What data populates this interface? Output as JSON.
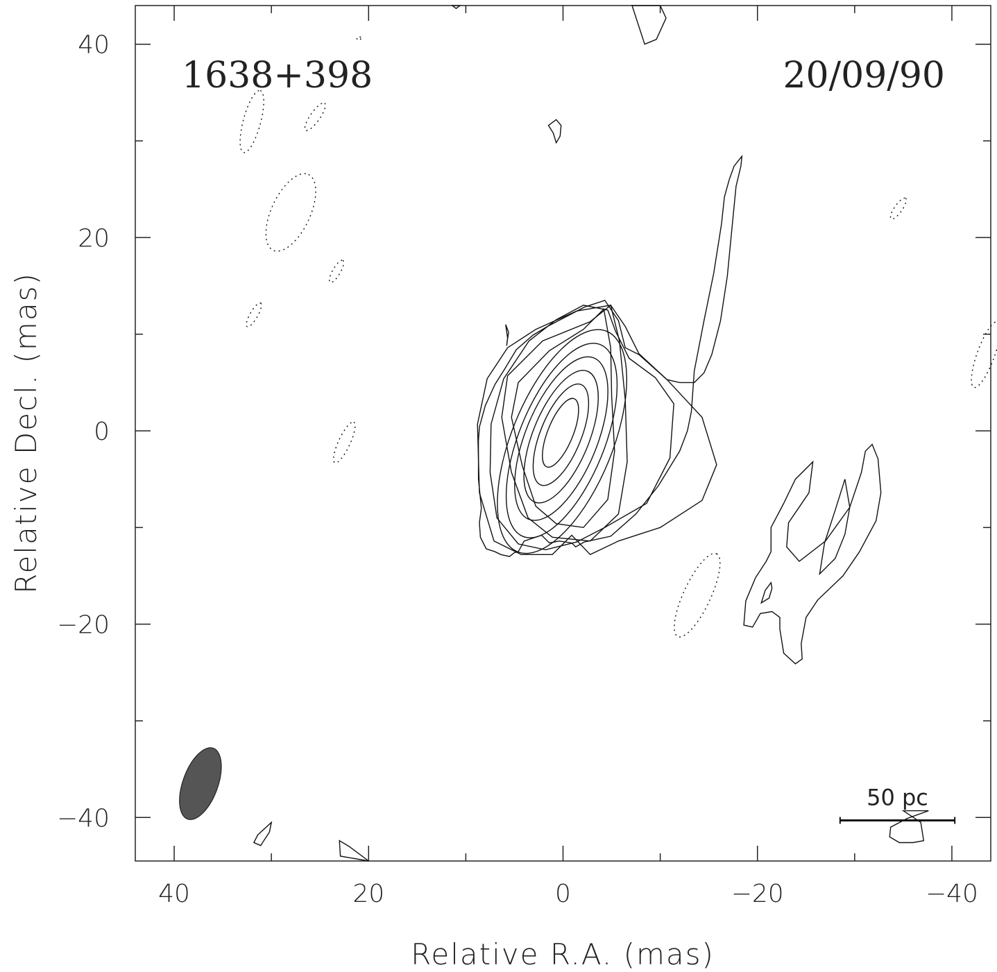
{
  "chart_data": {
    "type": "contour",
    "source_name": "1638+398",
    "epoch": "20/09/90",
    "xlabel": "Relative R.A. (mas)",
    "ylabel": "Relative Decl. (mas)",
    "xlim": [
      44,
      -44
    ],
    "ylim": [
      -44.5,
      44
    ],
    "x_ticks": [
      {
        "value": 40,
        "label": "40"
      },
      {
        "value": 20,
        "label": "20"
      },
      {
        "value": 0,
        "label": "0"
      },
      {
        "value": -20,
        "label": "−20"
      },
      {
        "value": -40,
        "label": "−40"
      }
    ],
    "y_ticks": [
      {
        "value": 40,
        "label": "40"
      },
      {
        "value": 20,
        "label": "20"
      },
      {
        "value": 0,
        "label": "0"
      },
      {
        "value": -20,
        "label": "−20"
      },
      {
        "value": -40,
        "label": "−40"
      }
    ],
    "x_minor_ticks": [
      30,
      10,
      -10,
      -30
    ],
    "y_minor_ticks": [
      30,
      10,
      -10,
      -30
    ],
    "scale_bar": {
      "label": "50 pc",
      "x_from": -28.5,
      "x_to": -40.3,
      "y": -40.3
    },
    "beam": {
      "center": [
        37.3,
        -36.5
      ],
      "major_axis_mas": 7.8,
      "minor_axis_mas": 3.6,
      "angle_deg": 20,
      "color": "#555555"
    },
    "core_center": [
      0.3,
      0.5
    ],
    "core_contours": [
      {
        "a": 3.8,
        "b": 1.3,
        "dx": 0.2,
        "dy": 0.7
      },
      {
        "a": 5.6,
        "b": 2.1,
        "dx": 0.4,
        "dy": 0.9
      },
      {
        "a": 7.3,
        "b": 2.9,
        "dx": 0.5,
        "dy": 1.1
      },
      {
        "a": 9.0,
        "b": 3.7,
        "dx": 0.6,
        "dy": 1.3
      },
      {
        "a": 10.7,
        "b": 4.4,
        "dx": 0.8,
        "dy": 1.5
      },
      {
        "a": 12.3,
        "b": 5.2,
        "dx": 1.0,
        "dy": 1.6
      }
    ],
    "positive_contours": [
      {
        "name": "core-contour-7",
        "points": [
          [
            -4.2,
            12.6
          ],
          [
            -2.1,
            10.5
          ],
          [
            1.4,
            8.3
          ],
          [
            4.6,
            5.0
          ],
          [
            5.3,
            1.4
          ],
          [
            4.2,
            -3.6
          ],
          [
            2.8,
            -7.8
          ],
          [
            0.7,
            -9.6
          ],
          [
            -2.1,
            -10.0
          ],
          [
            -4.6,
            -7.1
          ],
          [
            -5.3,
            -2.1
          ],
          [
            -5.0,
            3.6
          ],
          [
            -4.9,
            8.6
          ]
        ]
      },
      {
        "name": "core-contour-8",
        "points": [
          [
            -4.9,
            13.0
          ],
          [
            -2.8,
            11.3
          ],
          [
            2.1,
            9.3
          ],
          [
            5.7,
            5.7
          ],
          [
            6.3,
            1.4
          ],
          [
            5.3,
            -4.3
          ],
          [
            3.6,
            -9.0
          ],
          [
            1.1,
            -11.0
          ],
          [
            -2.8,
            -11.4
          ],
          [
            -5.7,
            -8.6
          ],
          [
            -6.6,
            -3.2
          ],
          [
            -6.4,
            3.2
          ],
          [
            -5.8,
            9.3
          ]
        ]
      },
      {
        "name": "core-contour-9",
        "points": [
          [
            -4.6,
            12.5
          ],
          [
            -5.4,
            10.3
          ],
          [
            -6.8,
            7.5
          ],
          [
            -9.5,
            5.5
          ],
          [
            -11.4,
            2.8
          ],
          [
            -11.0,
            -2.8
          ],
          [
            -8.6,
            -7.5
          ],
          [
            -4.3,
            -10.0
          ],
          [
            -1.4,
            -11.5
          ],
          [
            1.8,
            -12.3
          ],
          [
            4.6,
            -11.7
          ],
          [
            6.8,
            -9.0
          ],
          [
            7.5,
            -4.3
          ],
          [
            7.4,
            0.7
          ],
          [
            6.1,
            5.4
          ],
          [
            3.5,
            9.3
          ],
          [
            0.7,
            11.5
          ],
          [
            -2.1,
            13.0
          ]
        ]
      },
      {
        "name": "core-contour-10",
        "points": [
          [
            -4.9,
            13.0
          ],
          [
            -6.4,
            10.8
          ],
          [
            -7.8,
            8.0
          ],
          [
            -10.7,
            5.3
          ],
          [
            -14.3,
            1.4
          ],
          [
            -15.8,
            -3.5
          ],
          [
            -14.3,
            -7.2
          ],
          [
            -10.0,
            -10.0
          ],
          [
            -5.7,
            -11.4
          ],
          [
            -2.8,
            -12.8
          ],
          [
            -0.9,
            -10.8
          ],
          [
            1.1,
            -12.8
          ],
          [
            4.3,
            -12.8
          ],
          [
            7.1,
            -11.4
          ],
          [
            8.6,
            -6.4
          ],
          [
            8.8,
            0.7
          ],
          [
            7.8,
            5.4
          ],
          [
            5.7,
            8.6
          ],
          [
            2.8,
            10.5
          ],
          [
            -1.4,
            12.4
          ]
        ]
      },
      {
        "name": "jet-contour",
        "points": [
          [
            -4.3,
            13.5
          ],
          [
            -5.7,
            11.4
          ],
          [
            -6.4,
            8.6
          ],
          [
            -7.8,
            7.9
          ],
          [
            -10.7,
            5.3
          ],
          [
            -12.0,
            5.0
          ],
          [
            -13.5,
            5.0
          ],
          [
            -14.5,
            6.0
          ],
          [
            -15.3,
            7.9
          ],
          [
            -16.2,
            11.4
          ],
          [
            -16.9,
            16.0
          ],
          [
            -17.4,
            21.2
          ],
          [
            -17.8,
            25.3
          ],
          [
            -18.3,
            27.4
          ],
          [
            -18.4,
            28.4
          ],
          [
            -17.6,
            27.4
          ],
          [
            -17.1,
            26.0
          ],
          [
            -16.6,
            24.2
          ],
          [
            -16.3,
            21.4
          ],
          [
            -15.5,
            16.3
          ],
          [
            -14.5,
            11.4
          ],
          [
            -13.5,
            6.2
          ],
          [
            -13.2,
            2.0
          ],
          [
            -12.8,
            0.0
          ],
          [
            -12.0,
            -2.1
          ],
          [
            -9.8,
            -5.7
          ],
          [
            -7.5,
            -8.6
          ],
          [
            -4.9,
            -10.9
          ],
          [
            -2.2,
            -11.5
          ],
          [
            -1.3,
            -12.0
          ],
          [
            -0.9,
            -11.6
          ],
          [
            0.4,
            -11.4
          ],
          [
            1.4,
            -11.6
          ],
          [
            2.2,
            -10.8
          ],
          [
            4.0,
            -11.4
          ],
          [
            4.6,
            -12.5
          ],
          [
            5.0,
            -12.6
          ],
          [
            5.5,
            -13.0
          ],
          [
            6.4,
            -12.8
          ],
          [
            7.0,
            -12.5
          ],
          [
            7.9,
            -12.2
          ],
          [
            8.5,
            -11.0
          ],
          [
            8.6,
            -9.5
          ],
          [
            8.4,
            -8.0
          ],
          [
            8.7,
            -5.0
          ],
          [
            8.7,
            -1.0
          ],
          [
            8.6,
            0.4
          ],
          [
            8.0,
            2.6
          ],
          [
            7.0,
            4.8
          ],
          [
            6.0,
            6.4
          ],
          [
            4.8,
            8.4
          ],
          [
            3.1,
            9.9
          ],
          [
            1.6,
            10.8
          ],
          [
            -0.3,
            11.8
          ],
          [
            -2.2,
            12.8
          ]
        ]
      },
      {
        "name": "south-west-outer",
        "points": [
          [
            -21.4,
            -10.0
          ],
          [
            -22.7,
            -7.5
          ],
          [
            -23.9,
            -5.0
          ],
          [
            -25.7,
            -3.2
          ],
          [
            -25.3,
            -6.4
          ],
          [
            -23.2,
            -9.5
          ],
          [
            -23.0,
            -12.0
          ],
          [
            -24.3,
            -13.5
          ],
          [
            -27.0,
            -11.4
          ],
          [
            -29.5,
            -7.9
          ],
          [
            -30.7,
            -4.3
          ],
          [
            -31.1,
            -2.1
          ],
          [
            -31.8,
            -1.4
          ],
          [
            -32.4,
            -2.9
          ],
          [
            -32.7,
            -6.4
          ],
          [
            -32.2,
            -9.3
          ],
          [
            -30.5,
            -12.5
          ],
          [
            -28.8,
            -15.0
          ],
          [
            -26.2,
            -17.5
          ],
          [
            -25.0,
            -19.3
          ],
          [
            -24.5,
            -22.0
          ],
          [
            -24.6,
            -23.6
          ],
          [
            -23.9,
            -24.1
          ],
          [
            -22.7,
            -23.0
          ],
          [
            -22.3,
            -20.5
          ],
          [
            -22.3,
            -19.3
          ],
          [
            -21.5,
            -18.7
          ],
          [
            -20.3,
            -18.9
          ],
          [
            -19.5,
            -20.3
          ],
          [
            -18.6,
            -20.1
          ],
          [
            -18.8,
            -17.6
          ],
          [
            -19.8,
            -15.2
          ],
          [
            -20.9,
            -13.5
          ],
          [
            -21.4,
            -12.5
          ]
        ]
      },
      {
        "name": "south-west-inner",
        "points": [
          [
            -29.0,
            -5.0
          ],
          [
            -29.5,
            -7.9
          ],
          [
            -29.0,
            -10.7
          ],
          [
            -28.0,
            -13.2
          ],
          [
            -26.4,
            -14.8
          ],
          [
            -26.9,
            -11.6
          ],
          [
            -28.0,
            -8.2
          ]
        ]
      },
      {
        "name": "south-west-knot",
        "points": [
          [
            -21.4,
            -15.7
          ],
          [
            -20.8,
            -16.5
          ],
          [
            -20.4,
            -17.8
          ],
          [
            -21.2,
            -17.3
          ],
          [
            -21.5,
            -16.3
          ]
        ]
      },
      {
        "name": "north-blob",
        "points": [
          [
            1.0,
            30.8
          ],
          [
            1.5,
            31.6
          ],
          [
            0.7,
            32.2
          ],
          [
            0.2,
            31.6
          ],
          [
            0.3,
            30.5
          ],
          [
            0.7,
            29.8
          ]
        ]
      },
      {
        "name": "small-blob-left",
        "points": [
          [
            5.6,
            10.2
          ],
          [
            5.9,
            11.0
          ],
          [
            5.7,
            9.6
          ],
          [
            5.8,
            8.8
          ]
        ]
      },
      {
        "name": "top-edge-blob",
        "points": [
          [
            -7.1,
            44.0
          ],
          [
            -8.4,
            40.0
          ],
          [
            -9.6,
            40.5
          ],
          [
            -10.6,
            42.7
          ],
          [
            -10.0,
            44.0
          ]
        ]
      },
      {
        "name": "top-edge-fragment",
        "points": [
          [
            11.4,
            44.0
          ],
          [
            11.0,
            43.7
          ],
          [
            10.6,
            44.0
          ]
        ]
      },
      {
        "name": "bottom-blob-1",
        "points": [
          [
            30.0,
            -40.5
          ],
          [
            31.4,
            -41.8
          ],
          [
            31.8,
            -42.6
          ],
          [
            31.1,
            -42.9
          ],
          [
            30.2,
            -41.5
          ]
        ]
      },
      {
        "name": "bottom-blob-2",
        "points": [
          [
            20.0,
            -44.5
          ],
          [
            22.0,
            -43.0
          ],
          [
            23.0,
            -42.4
          ],
          [
            22.9,
            -44.0
          ]
        ]
      },
      {
        "name": "bottom-right-blob",
        "points": [
          [
            -35.0,
            -39.3
          ],
          [
            -36.8,
            -40.5
          ],
          [
            -37.1,
            -42.4
          ],
          [
            -36.0,
            -42.6
          ],
          [
            -34.6,
            -42.6
          ],
          [
            -33.6,
            -42.0
          ],
          [
            -33.7,
            -41.0
          ],
          [
            -35.4,
            -40.1
          ],
          [
            -37.6,
            -39.3
          ]
        ]
      }
    ],
    "negative_contours": [
      {
        "name": "neg-1",
        "center": [
          32.0,
          32.0
        ],
        "rx": 3.3,
        "ry": 0.9,
        "angle_deg": -75
      },
      {
        "name": "neg-2",
        "center": [
          25.5,
          32.5
        ],
        "rx": 1.7,
        "ry": 0.5,
        "angle_deg": -55
      },
      {
        "name": "neg-3",
        "center": [
          28.0,
          22.6
        ],
        "rx": 4.3,
        "ry": 2.0,
        "angle_deg": -65
      },
      {
        "name": "neg-4",
        "center": [
          23.3,
          16.5
        ],
        "rx": 1.3,
        "ry": 0.4,
        "angle_deg": -60
      },
      {
        "name": "neg-5",
        "center": [
          31.8,
          12.0
        ],
        "rx": 1.4,
        "ry": 0.4,
        "angle_deg": -60
      },
      {
        "name": "neg-6",
        "center": [
          22.5,
          -1.2
        ],
        "rx": 2.3,
        "ry": 0.6,
        "angle_deg": -65
      },
      {
        "name": "neg-7",
        "center": [
          -13.8,
          -17.0
        ],
        "rx": 4.7,
        "ry": 1.4,
        "angle_deg": -65
      },
      {
        "name": "neg-8",
        "center": [
          -34.5,
          23.0
        ],
        "rx": 1.3,
        "ry": 0.4,
        "angle_deg": -55
      },
      {
        "name": "neg-9",
        "center": [
          -43.5,
          7.9
        ],
        "rx": 3.6,
        "ry": 0.9,
        "angle_deg": -70
      },
      {
        "name": "neg-10",
        "center": [
          21.0,
          40.6
        ],
        "rx": 0.2,
        "ry": 0.2,
        "angle_deg": 0
      }
    ]
  }
}
